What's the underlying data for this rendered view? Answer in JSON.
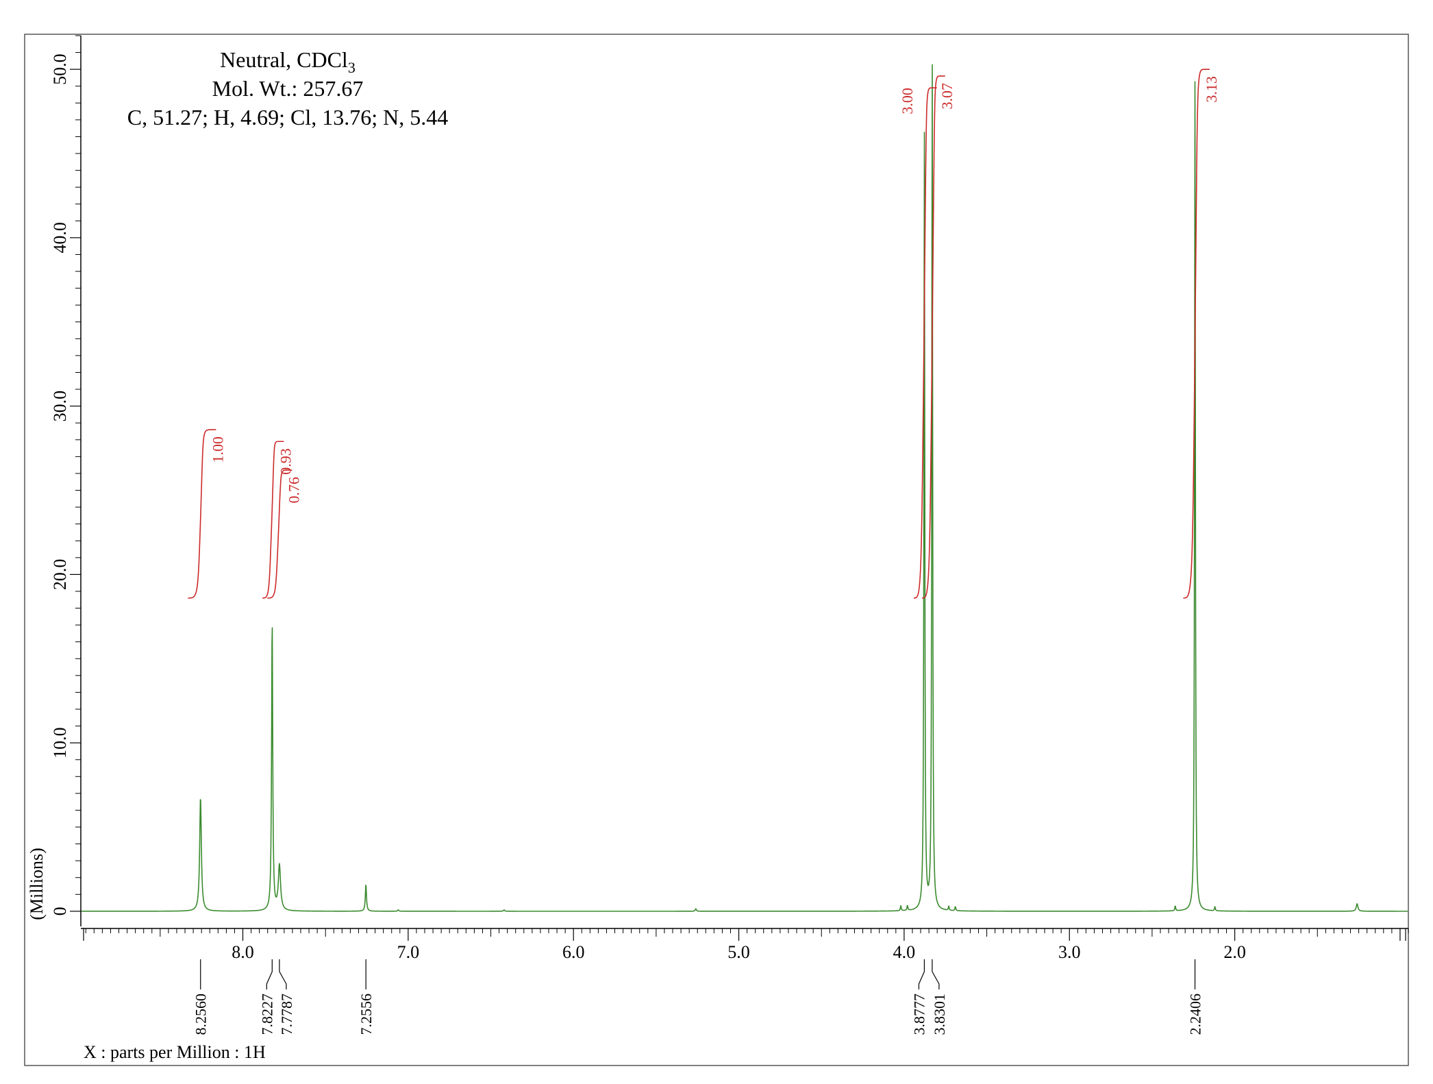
{
  "chart_data": {
    "type": "line",
    "title": "",
    "xlabel": "X : parts per Million : 1H",
    "ylabel": "(Millions)",
    "x_reversed": true,
    "xlim": [
      8.98,
      0.95
    ],
    "ylim": [
      -0.9,
      52.0
    ],
    "grid": false,
    "line_color": "#3a8a2e",
    "integral_color": "#cc2a2a",
    "info_lines": [
      "Neutral, CDCl",
      "Mol. Wt.: 257.67",
      "C, 51.27; H, 4.69; Cl, 13.76; N, 5.44"
    ],
    "info_subscript": "3",
    "x_ticks": [
      {
        "value": 8.0,
        "label": "8.0"
      },
      {
        "value": 7.0,
        "label": "7.0"
      },
      {
        "value": 6.0,
        "label": "6.0"
      },
      {
        "value": 5.0,
        "label": "5.0"
      },
      {
        "value": 4.0,
        "label": "4.0"
      },
      {
        "value": 3.0,
        "label": "3.0"
      },
      {
        "value": 2.0,
        "label": "2.0"
      }
    ],
    "y_ticks": [
      {
        "value": 0,
        "label": "0"
      },
      {
        "value": 10,
        "label": "10.0"
      },
      {
        "value": 20,
        "label": "20.0"
      },
      {
        "value": 30,
        "label": "30.0"
      },
      {
        "value": 40,
        "label": "40.0"
      },
      {
        "value": 50,
        "label": "50.0"
      }
    ],
    "peaks": [
      {
        "ppm": 8.256,
        "height": 6.8,
        "width": 0.006
      },
      {
        "ppm": 7.8227,
        "height": 17.4,
        "width": 0.004
      },
      {
        "ppm": 7.7787,
        "height": 2.7,
        "width": 0.008
      },
      {
        "ppm": 7.2556,
        "height": 1.6,
        "width": 0.004
      },
      {
        "ppm": 3.8777,
        "height": 46.7,
        "width": 0.003
      },
      {
        "ppm": 3.8301,
        "height": 51.0,
        "width": 0.003
      },
      {
        "ppm": 2.2406,
        "height": 49.3,
        "width": 0.003
      },
      {
        "ppm": 1.26,
        "height": 0.45,
        "width": 0.006
      },
      {
        "ppm": 2.36,
        "height": 0.3,
        "width": 0.003
      },
      {
        "ppm": 2.12,
        "height": 0.25,
        "width": 0.003
      },
      {
        "ppm": 4.02,
        "height": 0.3,
        "width": 0.003
      },
      {
        "ppm": 3.98,
        "height": 0.3,
        "width": 0.003
      },
      {
        "ppm": 3.73,
        "height": 0.25,
        "width": 0.003
      },
      {
        "ppm": 3.69,
        "height": 0.25,
        "width": 0.003
      },
      {
        "ppm": 5.26,
        "height": 0.15,
        "width": 0.004
      },
      {
        "ppm": 6.42,
        "height": 0.08,
        "width": 0.004
      },
      {
        "ppm": 7.06,
        "height": 0.08,
        "width": 0.004
      }
    ],
    "peak_labels": [
      {
        "ppm": 8.256,
        "label": "8.2560"
      },
      {
        "ppm": 7.8227,
        "label": "7.8227"
      },
      {
        "ppm": 7.7787,
        "label": "7.7787"
      },
      {
        "ppm": 7.2556,
        "label": "7.2556"
      },
      {
        "ppm": 3.8777,
        "label": "3.8777"
      },
      {
        "ppm": 3.8301,
        "label": "3.8301"
      },
      {
        "ppm": 2.2406,
        "label": "2.2406"
      }
    ],
    "integrals": [
      {
        "from_ppm": 8.29,
        "to_ppm": 8.22,
        "start_y": 18.6,
        "end_y": 28.6,
        "label": "1.00"
      },
      {
        "from_ppm": 7.84,
        "to_ppm": 7.81,
        "start_y": 18.6,
        "end_y": 27.9,
        "label": "0.93"
      },
      {
        "from_ppm": 7.81,
        "to_ppm": 7.76,
        "start_y": 18.6,
        "end_y": 26.2,
        "label": "0.76"
      },
      {
        "from_ppm": 3.9,
        "to_ppm": 3.86,
        "start_y": 18.6,
        "end_y": 48.9,
        "label": "3.00"
      },
      {
        "from_ppm": 3.85,
        "to_ppm": 3.81,
        "start_y": 18.6,
        "end_y": 49.6,
        "label": "3.07"
      },
      {
        "from_ppm": 2.27,
        "to_ppm": 2.21,
        "start_y": 18.6,
        "end_y": 50.0,
        "label": "3.13"
      }
    ]
  }
}
